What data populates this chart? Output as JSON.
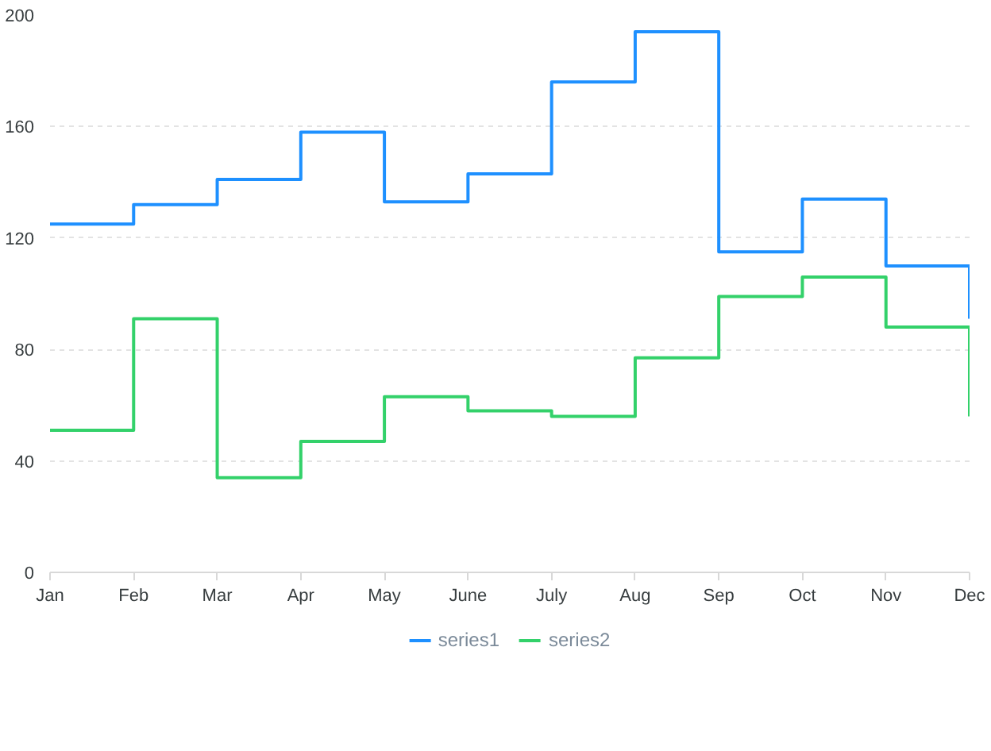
{
  "chart_data": {
    "type": "step",
    "categories": [
      "Jan",
      "Feb",
      "Mar",
      "Apr",
      "May",
      "June",
      "July",
      "Aug",
      "Sep",
      "Oct",
      "Nov",
      "Dec"
    ],
    "series": [
      {
        "name": "series1",
        "color": "#1e90ff",
        "values": [
          125,
          132,
          141,
          158,
          133,
          143,
          176,
          194,
          115,
          134,
          110,
          91
        ]
      },
      {
        "name": "series2",
        "color": "#33d16a",
        "values": [
          51,
          91,
          34,
          47,
          63,
          58,
          56,
          77,
          99,
          106,
          88,
          56
        ]
      }
    ],
    "ylim": [
      0,
      200
    ],
    "yticks": [
      0,
      40,
      80,
      120,
      160,
      200
    ],
    "grid": "y",
    "legend": "bottom",
    "line_style": "solid"
  }
}
